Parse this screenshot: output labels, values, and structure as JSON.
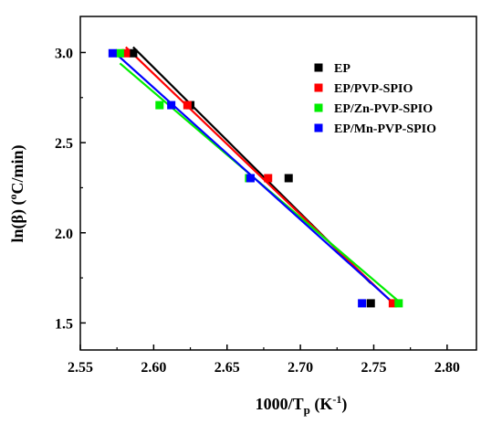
{
  "chart_data": {
    "type": "scatter",
    "xlabel": {
      "main": "1000/T",
      "sub": "p",
      "tail": " (K",
      "sup": "-1",
      "end": ")"
    },
    "ylabel": {
      "main": "ln(β) (",
      "sup": "o",
      "tail": "C/min)"
    },
    "xlim": [
      2.55,
      2.82
    ],
    "ylim": [
      1.35,
      3.2
    ],
    "xticks": [
      {
        "value": 2.55,
        "label": "2.55"
      },
      {
        "value": 2.6,
        "label": "2.60"
      },
      {
        "value": 2.65,
        "label": "2.65"
      },
      {
        "value": 2.7,
        "label": "2.70"
      },
      {
        "value": 2.75,
        "label": "2.75"
      },
      {
        "value": 2.8,
        "label": "2.80"
      }
    ],
    "yticks": [
      {
        "value": 1.5,
        "label": "1.5"
      },
      {
        "value": 2.0,
        "label": "2.0"
      },
      {
        "value": 2.5,
        "label": "2.5"
      },
      {
        "value": 3.0,
        "label": "3.0"
      }
    ],
    "grid": false,
    "legend_position": "top-right",
    "series": [
      {
        "name": "EP",
        "color": "#000000",
        "points": [
          [
            2.586,
            2.996
          ],
          [
            2.625,
            2.708
          ],
          [
            2.692,
            2.303
          ],
          [
            2.748,
            1.609
          ]
        ],
        "fit": [
          [
            2.586,
            3.03
          ],
          [
            2.748,
            1.72
          ]
        ]
      },
      {
        "name": "EP/PVP-SPIO",
        "color": "#ff0000",
        "points": [
          [
            2.581,
            2.996
          ],
          [
            2.623,
            2.708
          ],
          [
            2.678,
            2.303
          ],
          [
            2.763,
            1.609
          ]
        ],
        "fit": [
          [
            2.581,
            3.03
          ],
          [
            2.763,
            1.61
          ]
        ]
      },
      {
        "name": "EP/Zn-PVP-SPIO",
        "color": "#00ee00",
        "points": [
          [
            2.577,
            2.996
          ],
          [
            2.604,
            2.708
          ],
          [
            2.665,
            2.303
          ],
          [
            2.767,
            1.609
          ]
        ],
        "fit": [
          [
            2.577,
            2.94
          ],
          [
            2.767,
            1.62
          ]
        ]
      },
      {
        "name": "EP/Mn-PVP-SPIO",
        "color": "#0000ff",
        "points": [
          [
            2.572,
            2.996
          ],
          [
            2.612,
            2.708
          ],
          [
            2.666,
            2.303
          ],
          [
            2.742,
            1.609
          ]
        ],
        "fit": [
          [
            2.572,
            3.01
          ],
          [
            2.762,
            1.62
          ]
        ]
      }
    ]
  }
}
